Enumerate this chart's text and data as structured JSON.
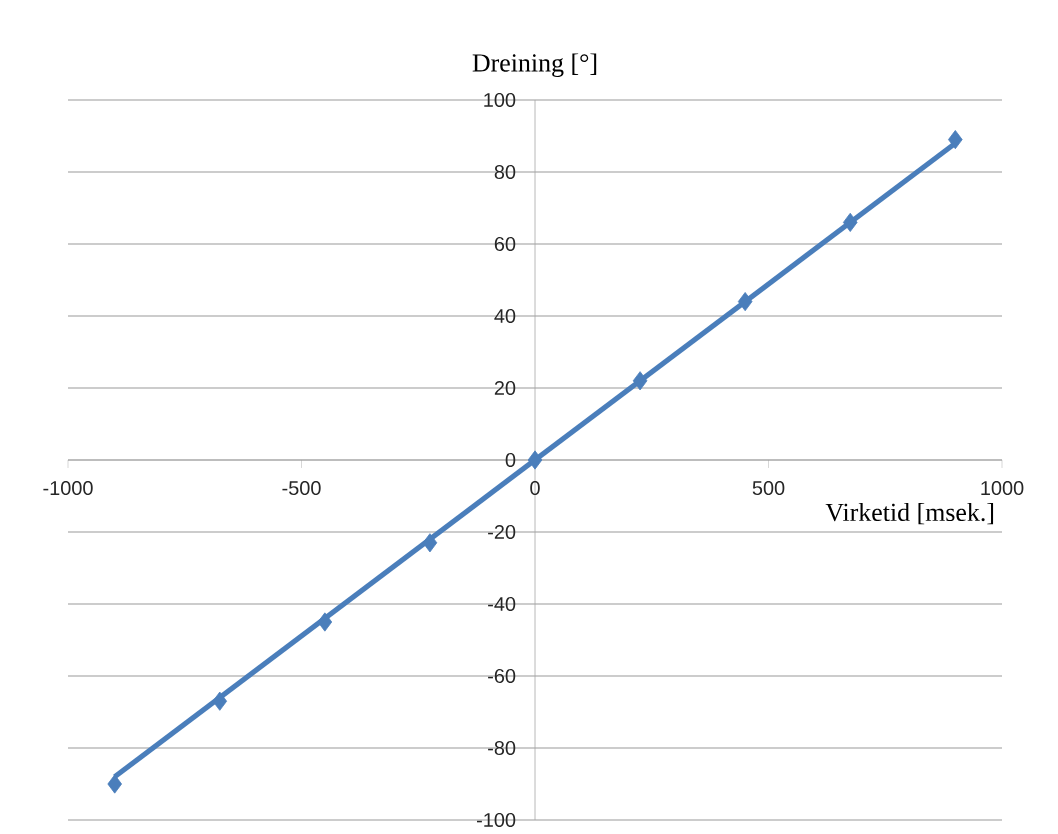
{
  "chart_data": {
    "type": "scatter",
    "xlabel": "Virketid [msek.]",
    "ylabel": "Dreining [°]",
    "xlim": [
      -1000,
      1000
    ],
    "ylim": [
      -100,
      100
    ],
    "xticks": [
      -1000,
      -500,
      0,
      500,
      1000
    ],
    "yticks": [
      -100,
      -80,
      -60,
      -40,
      -20,
      0,
      20,
      40,
      60,
      80,
      100
    ],
    "grid": "y",
    "series": [
      {
        "marker": "diamond",
        "color": "#4a7ebb",
        "x": [
          -900,
          -675,
          -450,
          -225,
          0,
          225,
          450,
          675,
          900
        ],
        "values": [
          -90,
          -67,
          -45,
          -23,
          0,
          22,
          44,
          66,
          89
        ]
      },
      {
        "type": "line",
        "color": "#4a7ebb",
        "x": [
          -900,
          900
        ],
        "values": [
          -88,
          88
        ]
      }
    ]
  }
}
